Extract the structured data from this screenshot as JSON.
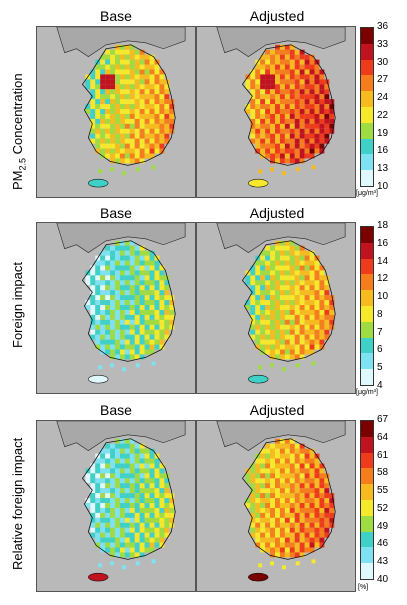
{
  "columns": [
    "Base",
    "Adjusted"
  ],
  "rows": [
    {
      "label_main": "PM",
      "label_sub": "2.5",
      "label_rest": " Concentration",
      "unit": "[μg/m³]",
      "ticks": [
        "36",
        "33",
        "30",
        "27",
        "24",
        "22",
        "19",
        "16",
        "13",
        "10"
      ],
      "colors": [
        "#7a0000",
        "#c1121f",
        "#ee3b1c",
        "#f57d1d",
        "#f7bb1f",
        "#f6e82a",
        "#9fdc43",
        "#3fd1c8",
        "#7fe2f2",
        "#dff8fb"
      ],
      "base_level": 5,
      "adj_level": 3
    },
    {
      "label_main": "Foreign impact",
      "label_sub": "",
      "label_rest": "",
      "unit": "[μg/m³]",
      "ticks": [
        "18",
        "16",
        "14",
        "12",
        "10",
        "8",
        "7",
        "6",
        "5",
        "4"
      ],
      "colors": [
        "#7a0000",
        "#c1121f",
        "#ee3b1c",
        "#f57d1d",
        "#f7bb1f",
        "#f6e82a",
        "#9fdc43",
        "#3fd1c8",
        "#7fe2f2",
        "#dff8fb"
      ],
      "base_level": 7,
      "adj_level": 5
    },
    {
      "label_main": "Relative foreign impact",
      "label_sub": "",
      "label_rest": "",
      "unit": "[%]",
      "ticks": [
        "67",
        "64",
        "61",
        "58",
        "55",
        "52",
        "49",
        "46",
        "43",
        "40"
      ],
      "colors": [
        "#7a0000",
        "#c1121f",
        "#ee3b1c",
        "#f57d1d",
        "#f7bb1f",
        "#f6e82a",
        "#9fdc43",
        "#3fd1c8",
        "#7fe2f2",
        "#dff8fb"
      ],
      "base_level": 7,
      "adj_level": 4
    }
  ]
}
